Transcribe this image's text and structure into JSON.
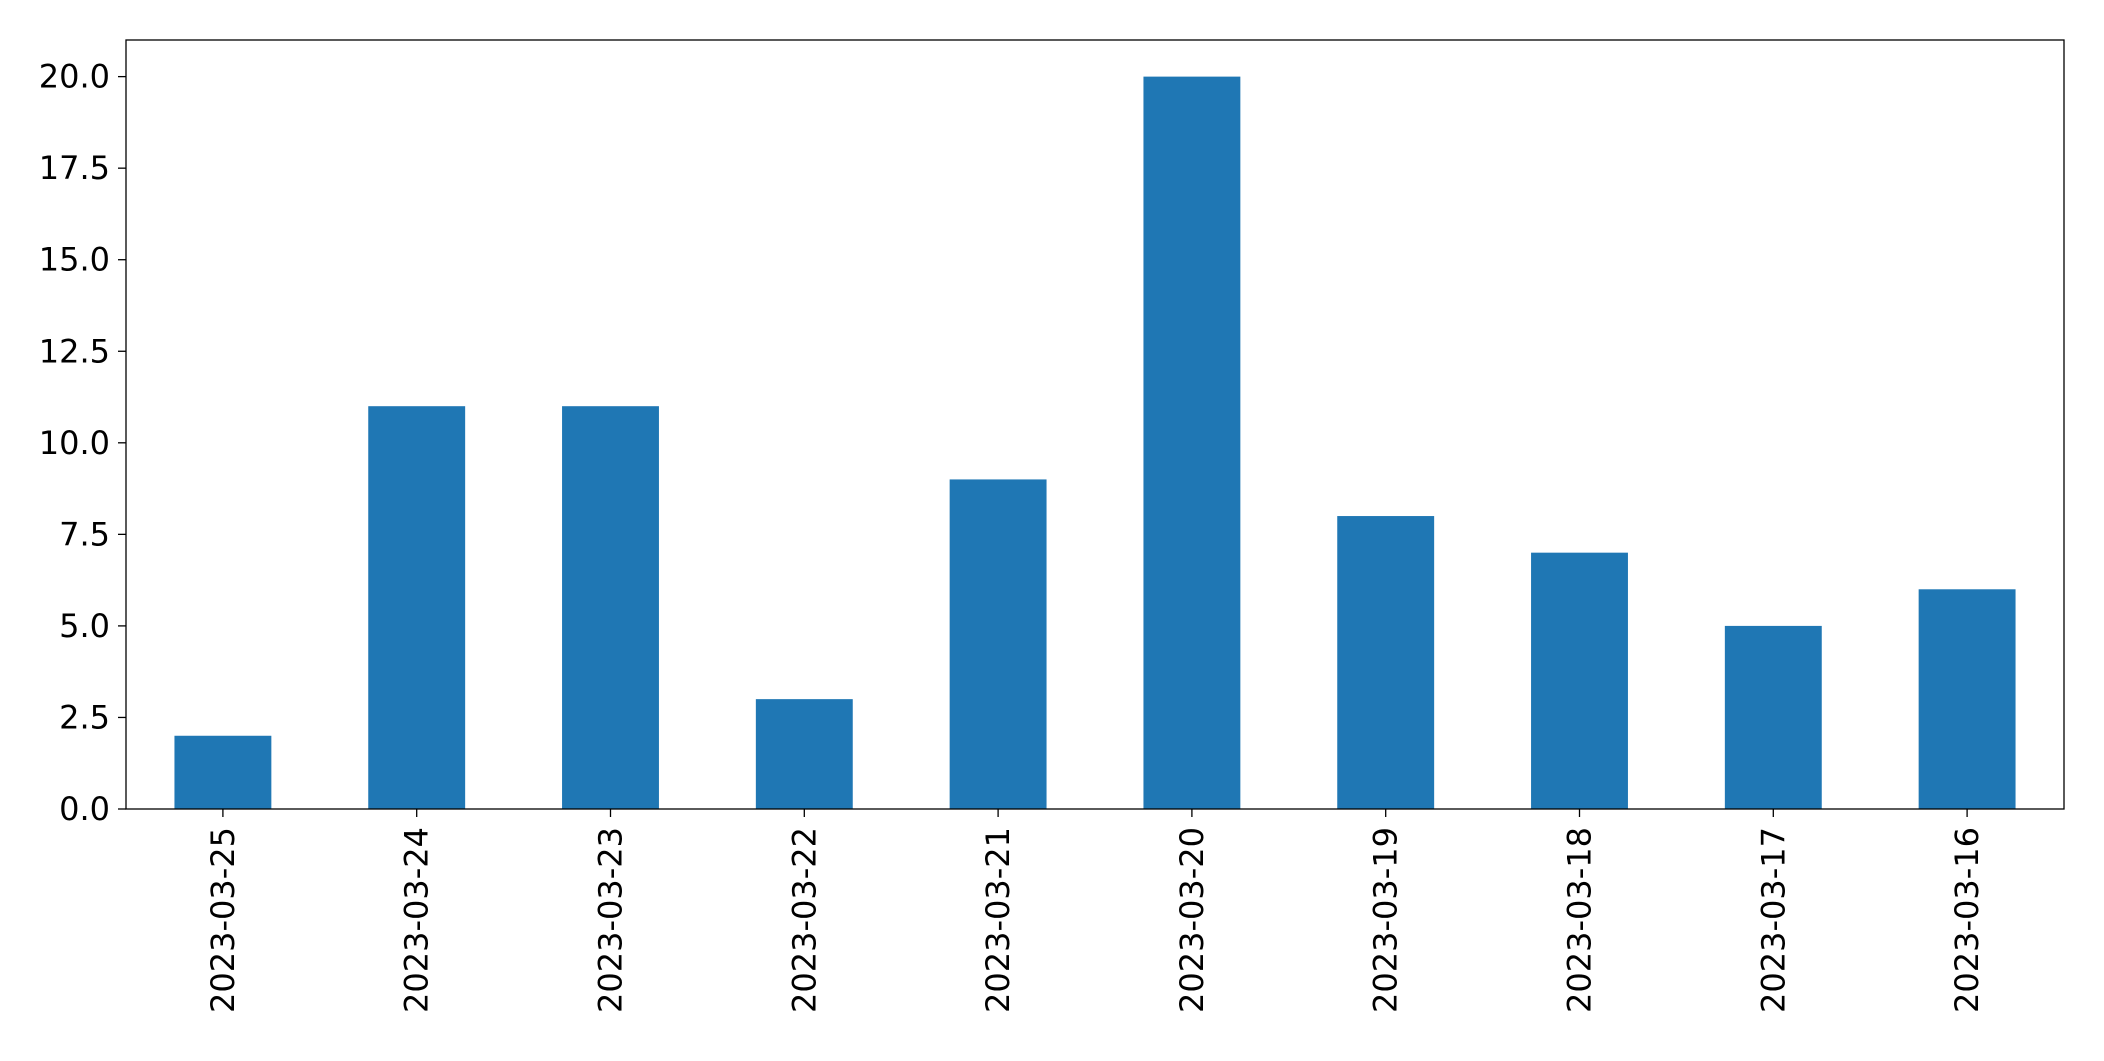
{
  "chart_data": {
    "type": "bar",
    "categories": [
      "2023-03-25",
      "2023-03-24",
      "2023-03-23",
      "2023-03-22",
      "2023-03-21",
      "2023-03-20",
      "2023-03-19",
      "2023-03-18",
      "2023-03-17",
      "2023-03-16"
    ],
    "values": [
      2,
      11,
      11,
      3,
      9,
      20,
      8,
      7,
      5,
      6
    ],
    "color": "#1f77b4",
    "ylim": [
      0,
      21
    ],
    "yticks": [
      {
        "value": 0,
        "label": "0.0"
      },
      2.5,
      {
        "value": 5,
        "label": "5.0"
      },
      7.5,
      {
        "value": 10,
        "label": "10.0"
      },
      12.5,
      {
        "value": 15,
        "label": "15.0"
      },
      17.5,
      {
        "value": 20,
        "label": "20.0"
      }
    ],
    "grid": false
  }
}
